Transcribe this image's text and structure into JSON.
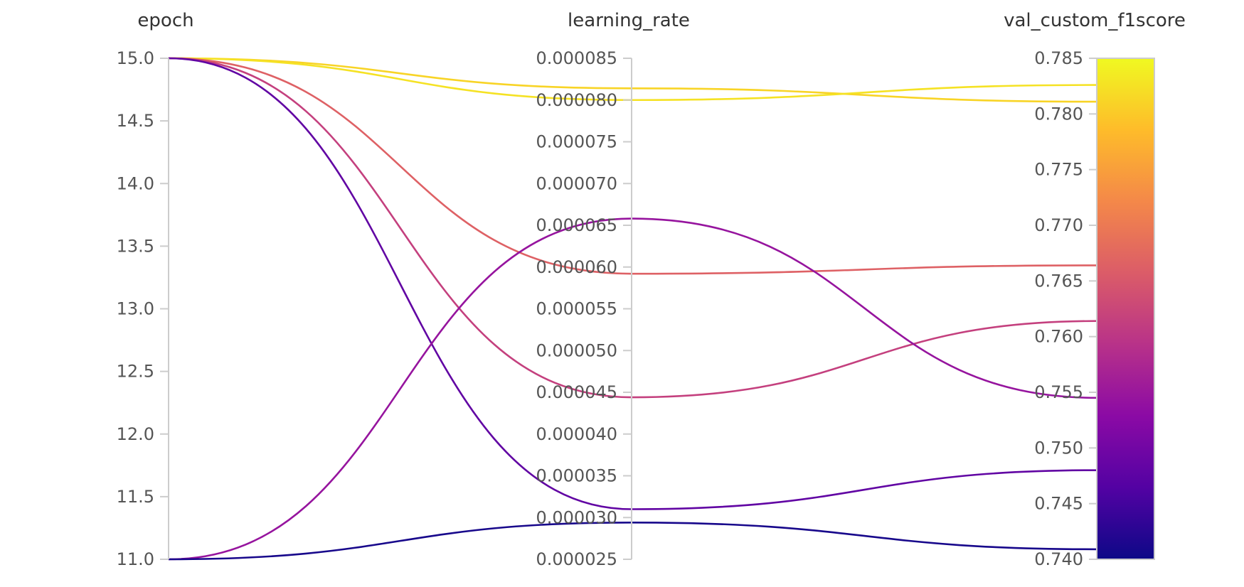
{
  "chart_data": {
    "type": "parallel_coordinates",
    "dimensions": [
      {
        "name": "epoch",
        "range": [
          11.0,
          15.0
        ],
        "ticks": [
          "11.0",
          "11.5",
          "12.0",
          "12.5",
          "13.0",
          "13.5",
          "14.0",
          "14.5",
          "15.0"
        ]
      },
      {
        "name": "learning_rate",
        "range": [
          2.5e-05,
          8.5e-05
        ],
        "ticks": [
          "0.000025",
          "0.000030",
          "0.000035",
          "0.000040",
          "0.000045",
          "0.000050",
          "0.000055",
          "0.000060",
          "0.000065",
          "0.000070",
          "0.000075",
          "0.000080",
          "0.000085"
        ]
      },
      {
        "name": "val_custom_f1score",
        "range": [
          0.74,
          0.785
        ],
        "ticks": [
          "0.740",
          "0.745",
          "0.750",
          "0.755",
          "0.760",
          "0.765",
          "0.770",
          "0.775",
          "0.780",
          "0.785"
        ]
      }
    ],
    "color_dimension": "val_custom_f1score",
    "colorscale": [
      "#0d0887",
      "#5302a3",
      "#8b0aa5",
      "#b83289",
      "#db5c68",
      "#f48849",
      "#febc2a",
      "#f0f921"
    ],
    "runs": [
      {
        "epoch": 15,
        "learning_rate": 8.14e-05,
        "val_custom_f1score": 0.7811
      },
      {
        "epoch": 15,
        "learning_rate": 8e-05,
        "val_custom_f1score": 0.7826
      },
      {
        "epoch": 15,
        "learning_rate": 5.92e-05,
        "val_custom_f1score": 0.7664
      },
      {
        "epoch": 15,
        "learning_rate": 4.44e-05,
        "val_custom_f1score": 0.7614
      },
      {
        "epoch": 15,
        "learning_rate": 3.1e-05,
        "val_custom_f1score": 0.748
      },
      {
        "epoch": 11,
        "learning_rate": 6.58e-05,
        "val_custom_f1score": 0.7545
      },
      {
        "epoch": 11,
        "learning_rate": 2.94e-05,
        "val_custom_f1score": 0.7409
      }
    ]
  }
}
